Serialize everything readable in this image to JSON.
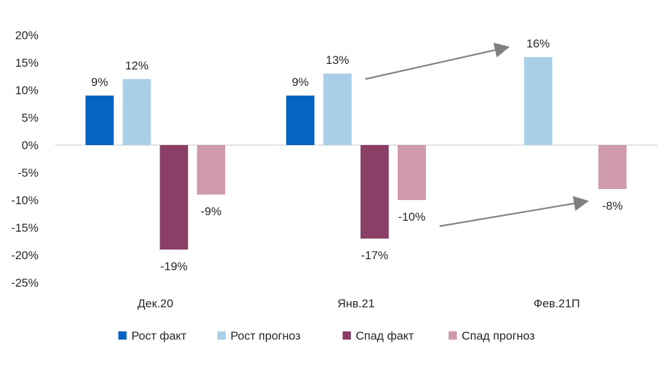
{
  "chart_data": {
    "type": "bar",
    "categories": [
      "Дек.20",
      "Янв.21",
      "Фев.21П"
    ],
    "series": [
      {
        "name": "Рост факт",
        "values": [
          9,
          9,
          null
        ],
        "labels": [
          "9%",
          "9%",
          ""
        ],
        "color": "#0563c1"
      },
      {
        "name": "Рост прогноз",
        "values": [
          12,
          13,
          16
        ],
        "labels": [
          "12%",
          "13%",
          "16%"
        ],
        "color": "#a9cfe8"
      },
      {
        "name": "Спад факт",
        "values": [
          -19,
          -17,
          null
        ],
        "labels": [
          "-19%",
          "-17%",
          ""
        ],
        "color": "#8b3f66"
      },
      {
        "name": "Спад прогноз",
        "values": [
          -9,
          -10,
          -8
        ],
        "labels": [
          "-9%",
          "-10%",
          "-8%"
        ],
        "color": "#cf9aaa"
      }
    ],
    "ylim": [
      -25,
      20
    ],
    "yticks": [
      20,
      15,
      10,
      5,
      0,
      -5,
      -10,
      -15,
      -20,
      -25
    ],
    "ytick_labels": [
      "20%",
      "15%",
      "10%",
      "5%",
      "0%",
      "-5%",
      "-10%",
      "-15%",
      "-20%",
      "-25%"
    ],
    "legend_position": "bottom",
    "annotations": [
      {
        "type": "arrow",
        "from_series": "Рост прогноз",
        "from_category": "Янв.21",
        "to_category": "Фев.21П"
      },
      {
        "type": "arrow",
        "from_series": "Спад прогноз",
        "from_category": "Янв.21",
        "to_category": "Фев.21П"
      }
    ],
    "colors": {
      "axis_line": "#d9d9d9",
      "text": "#262626",
      "arrow": "#808080"
    }
  }
}
